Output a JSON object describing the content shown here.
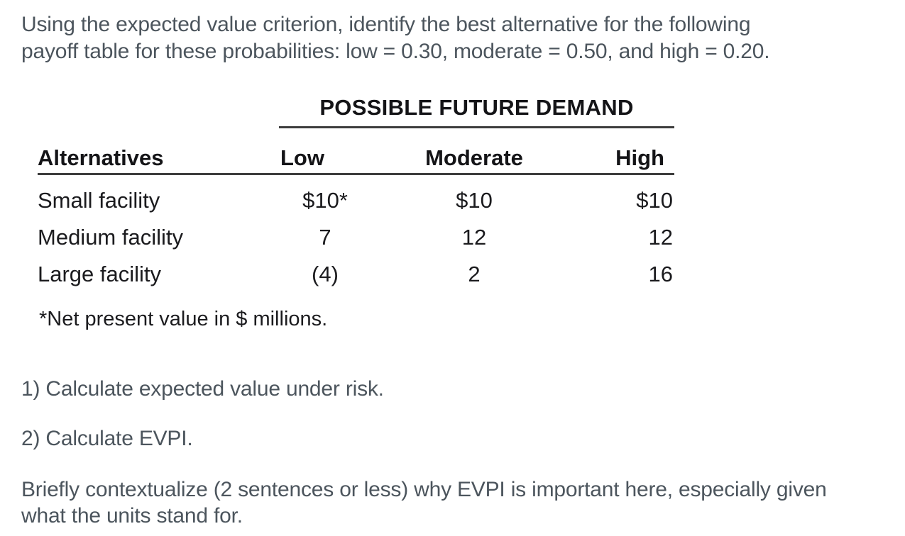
{
  "question": {
    "lines": [
      "Using the expected value criterion, identify the best alternative for the following",
      "payoff table for these probabilities: low = 0.30, moderate = 0.50, and high = 0.20."
    ]
  },
  "table": {
    "spanner_heading": "POSSIBLE FUTURE DEMAND",
    "columns": {
      "alternatives": "Alternatives",
      "low": "Low",
      "moderate": "Moderate",
      "high": "High"
    },
    "rows": [
      {
        "alternative": "Small facility",
        "low": "$10*",
        "moderate": "$10",
        "high": "$10"
      },
      {
        "alternative": "Medium facility",
        "low": "7",
        "moderate": "12",
        "high": "12"
      },
      {
        "alternative": "Large facility",
        "low": "(4)",
        "moderate": "2",
        "high": "16"
      }
    ],
    "footnote": "*Net present value in $ millions."
  },
  "tasks": [
    "1) Calculate expected value under risk.",
    "2) Calculate EVPI."
  ],
  "closing": {
    "lines": [
      "Briefly contextualize (2 sentences or less) why EVPI is important here, especially given",
      "what the units stand for."
    ]
  },
  "colors": {
    "background": "#ffffff",
    "body_text": "#4c555d",
    "table_text": "#1b1b1e",
    "rule": "#3d3d3d"
  }
}
